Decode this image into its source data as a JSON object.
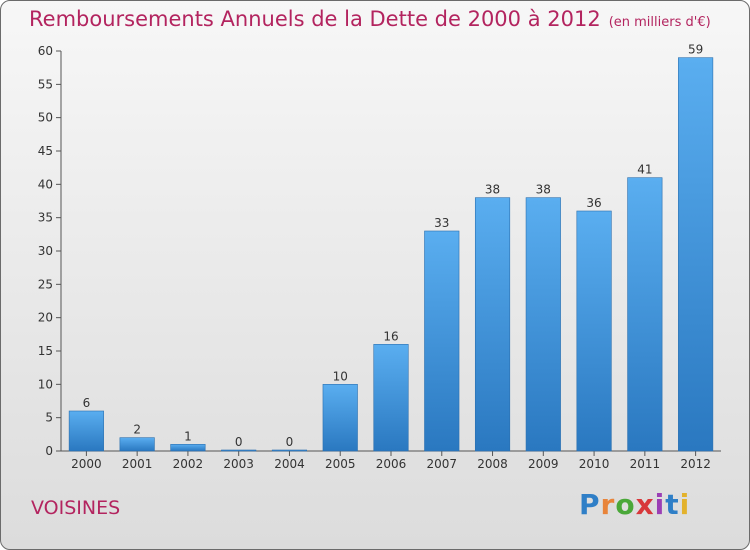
{
  "title": "Remboursements Annuels de la Dette de 2000 à 2012",
  "unit": "(en milliers d'€)",
  "commune": "VOISINES",
  "logo": {
    "text": "Proxiti",
    "letter_colors": [
      "#2f7fc7",
      "#e8843a",
      "#4aa839",
      "#d8383b",
      "#9b3fb5",
      "#2f7fc7",
      "#e3b22c"
    ]
  },
  "chart_data": {
    "type": "bar",
    "categories": [
      "2000",
      "2001",
      "2002",
      "2003",
      "2004",
      "2005",
      "2006",
      "2007",
      "2008",
      "2009",
      "2010",
      "2011",
      "2012"
    ],
    "values": [
      6,
      2,
      1,
      0,
      0,
      10,
      16,
      33,
      38,
      38,
      36,
      41,
      59
    ],
    "ylim": [
      0,
      60
    ],
    "yticks": [
      0,
      5,
      10,
      15,
      20,
      25,
      30,
      35,
      40,
      45,
      50,
      55,
      60
    ],
    "grid": false,
    "bar_color": "#3a8fd6"
  }
}
